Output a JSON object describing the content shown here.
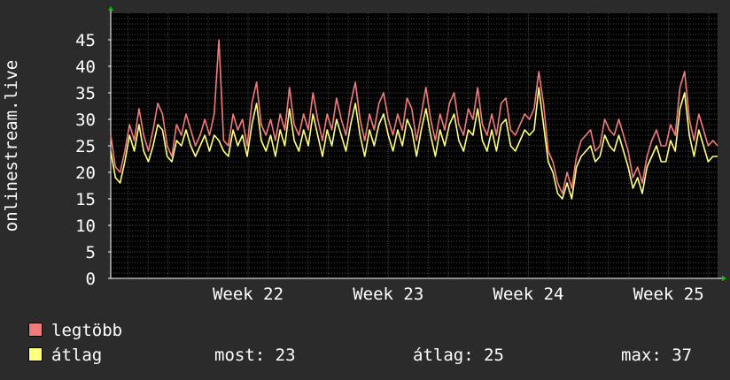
{
  "chart_data": {
    "type": "line",
    "ylabel": "onlinestream.live",
    "ylim": [
      0,
      50
    ],
    "y_ticks": [
      "0",
      "5",
      "10",
      "15",
      "20",
      "25",
      "30",
      "35",
      "40",
      "45"
    ],
    "x_ticks": [
      {
        "label": "Week 22",
        "x": 22
      },
      {
        "label": "Week 23",
        "x": 23
      },
      {
        "label": "Week 24",
        "x": 24
      },
      {
        "label": "Week 25",
        "x": 25
      }
    ],
    "xlim": [
      21.02,
      25.35
    ],
    "grid": true,
    "legend_placement": "bottom",
    "series": [
      {
        "name": "legtöbb",
        "color": "#f07b7b",
        "values": [
          27,
          21,
          20,
          24,
          29,
          26,
          32,
          27,
          24,
          28,
          33,
          31,
          25,
          23,
          29,
          27,
          31,
          28,
          25,
          27,
          30,
          27,
          31,
          45,
          26,
          25,
          31,
          28,
          30,
          25,
          33,
          37,
          29,
          27,
          30,
          26,
          31,
          28,
          36,
          29,
          27,
          31,
          28,
          35,
          30,
          26,
          31,
          28,
          34,
          30,
          27,
          33,
          37,
          30,
          26,
          31,
          28,
          33,
          35,
          30,
          27,
          31,
          28,
          34,
          32,
          26,
          31,
          36,
          30,
          26,
          31,
          28,
          33,
          35,
          29,
          27,
          32,
          30,
          36,
          29,
          27,
          31,
          27,
          33,
          34,
          28,
          27,
          29,
          31,
          30,
          32,
          39,
          33,
          24,
          22,
          18,
          16,
          20,
          17,
          23,
          26,
          27,
          28,
          24,
          25,
          30,
          28,
          27,
          30,
          27,
          24,
          19,
          21,
          18,
          23,
          26,
          28,
          25,
          25,
          29,
          27,
          36,
          39,
          30,
          26,
          31,
          28,
          25,
          26,
          25
        ]
      },
      {
        "name": "átlag",
        "color": "#ffff80",
        "values": [
          24,
          19,
          18,
          22,
          27,
          24,
          29,
          24,
          22,
          25,
          29,
          28,
          23,
          22,
          26,
          25,
          28,
          25,
          23,
          25,
          27,
          24,
          27,
          26,
          24,
          23,
          28,
          25,
          27,
          23,
          29,
          33,
          26,
          24,
          27,
          23,
          28,
          25,
          32,
          26,
          24,
          28,
          25,
          31,
          27,
          23,
          28,
          25,
          30,
          27,
          24,
          29,
          33,
          27,
          23,
          28,
          25,
          29,
          31,
          27,
          24,
          28,
          25,
          30,
          28,
          23,
          28,
          32,
          27,
          23,
          28,
          25,
          29,
          31,
          26,
          24,
          28,
          27,
          32,
          26,
          24,
          28,
          24,
          29,
          30,
          25,
          24,
          26,
          28,
          27,
          28,
          36,
          29,
          22,
          20,
          16,
          15,
          18,
          15,
          21,
          23,
          24,
          25,
          22,
          23,
          27,
          25,
          24,
          27,
          24,
          21,
          17,
          19,
          16,
          21,
          23,
          25,
          22,
          22,
          26,
          24,
          32,
          35,
          27,
          23,
          28,
          25,
          22,
          23,
          23
        ]
      }
    ]
  },
  "legend": {
    "max_label": "legtöbb",
    "avg_label": "átlag"
  },
  "stats": {
    "now": "most: 23",
    "avg": "átlag: 25",
    "max": "max: 37"
  },
  "colors": {
    "background": "#2b2b2b",
    "plot_background": "#000000",
    "grid_major": "#7a2a2a",
    "grid_minor": "#4a4a4a",
    "axis": "#ffffff",
    "arrow": "#00cc00"
  }
}
